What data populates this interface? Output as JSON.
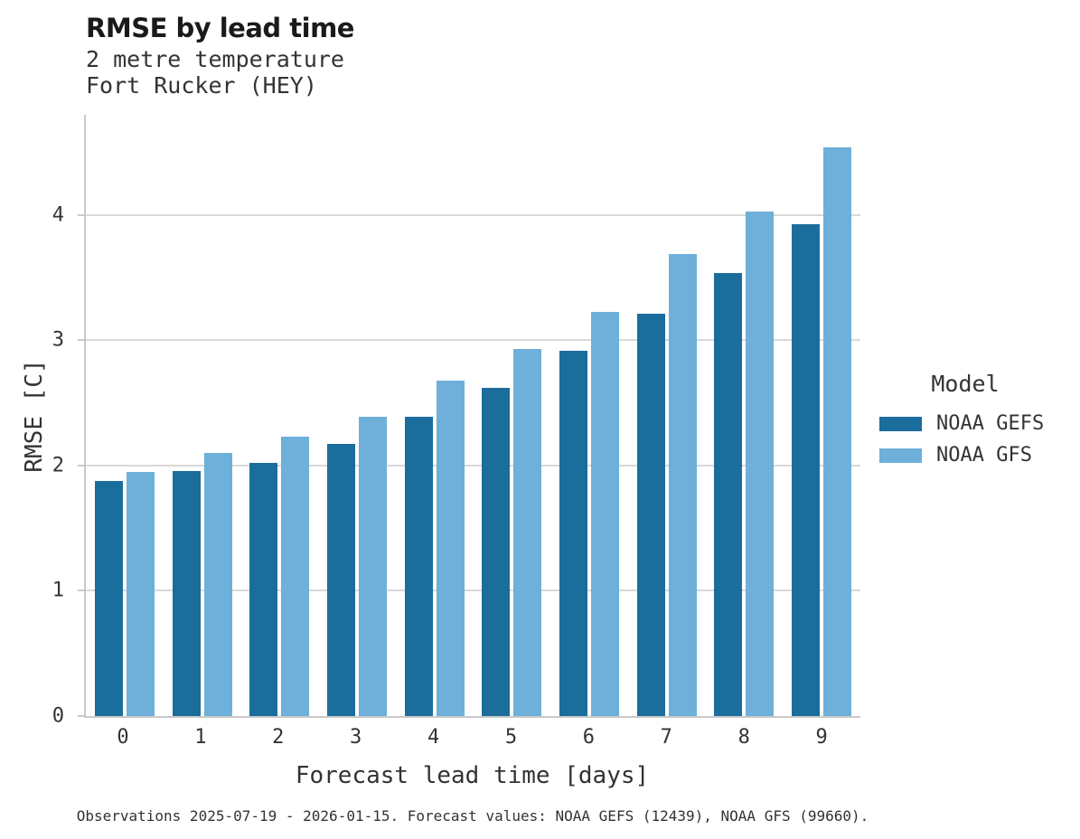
{
  "header": {
    "title": "RMSE by lead time",
    "subtitle_line1": "2 metre temperature",
    "subtitle_line2": "Fort Rucker (HEY)"
  },
  "legend": {
    "title": "Model",
    "entries": [
      {
        "label": "NOAA GEFS",
        "color": "#1b6d9c"
      },
      {
        "label": "NOAA GFS",
        "color": "#6eb0d9"
      }
    ]
  },
  "footer": {
    "caption": "Observations 2025-07-19 - 2026-01-15. Forecast values: NOAA GEFS (12439), NOAA GFS (99660)."
  },
  "chart_data": {
    "type": "bar",
    "title": "RMSE by lead time",
    "subtitle": "2 metre temperature — Fort Rucker (HEY)",
    "categories": [
      "0",
      "1",
      "2",
      "3",
      "4",
      "5",
      "6",
      "7",
      "8",
      "9"
    ],
    "series": [
      {
        "name": "NOAA GEFS",
        "color": "#1b6d9c",
        "values": [
          1.88,
          1.96,
          2.02,
          2.17,
          2.39,
          2.62,
          2.92,
          3.21,
          3.54,
          3.93
        ]
      },
      {
        "name": "NOAA GFS",
        "color": "#6eb0d9",
        "values": [
          1.95,
          2.1,
          2.23,
          2.39,
          2.68,
          2.93,
          3.23,
          3.69,
          4.03,
          4.54
        ]
      }
    ],
    "xlabel": "Forecast lead time [days]",
    "ylabel": "RMSE [C]",
    "ylim": [
      0,
      4.8
    ],
    "yticks": [
      0,
      1,
      2,
      3,
      4
    ],
    "grid": "horizontal",
    "grid_color": "#d9d9d9",
    "axis_color": "#c9c9c9",
    "legend_position": "right"
  }
}
